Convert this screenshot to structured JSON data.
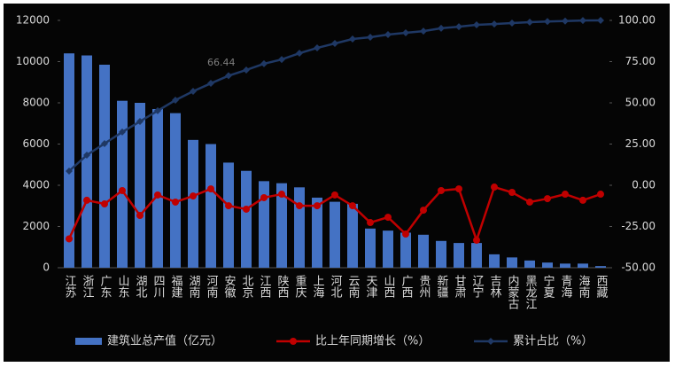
{
  "chart_data": {
    "type": "bar-line",
    "categories": [
      "江苏",
      "浙江",
      "广东",
      "山东",
      "湖北",
      "四川",
      "福建",
      "湖南",
      "河南",
      "安徽",
      "北京",
      "江西",
      "陕西",
      "重庆",
      "上海",
      "河北",
      "云南",
      "天津",
      "山西",
      "广西",
      "贵州",
      "新疆",
      "甘肃",
      "辽宁",
      "吉林",
      "内蒙古",
      "黑龙江",
      "宁夏",
      "青海",
      "海南",
      "西藏"
    ],
    "series": [
      {
        "name": "建筑业总产值（亿元）",
        "type": "bar",
        "color": "#4472c4",
        "values": [
          10400,
          10300,
          9850,
          8100,
          8000,
          7700,
          7500,
          6200,
          6000,
          5100,
          4700,
          4200,
          4100,
          3900,
          3400,
          3200,
          3100,
          1900,
          1800,
          1700,
          1600,
          1300,
          1200,
          1200,
          650,
          500,
          350,
          250,
          200,
          200,
          80
        ]
      },
      {
        "name": "比上年同期增长（%）",
        "type": "line",
        "axis": "y2",
        "color": "#c00000",
        "marker": "circle",
        "values": [
          -32.5,
          -9.1,
          -11.3,
          -3.2,
          -18.3,
          -5.9,
          -10.2,
          -6.5,
          -2.2,
          -12.4,
          -14.5,
          -7.5,
          -5.4,
          -12.4,
          -12.4,
          -5.9,
          -12.4,
          -22.6,
          -19.4,
          -29.6,
          -15.1,
          -3.2,
          -2.2,
          -33.3,
          -1.1,
          -4.3,
          -10.2,
          -8.1,
          -5.4,
          -9.1,
          -5.4
        ]
      },
      {
        "name": "累计占比（%）",
        "type": "line",
        "axis": "y2",
        "color": "#1f3864",
        "marker": "diamond",
        "values": [
          8.6,
          18.3,
          25.3,
          32.3,
          38.7,
          45.2,
          51.6,
          57.0,
          61.8,
          66.44,
          69.9,
          73.7,
          76.3,
          80.1,
          83.3,
          86.0,
          88.7,
          89.8,
          91.4,
          92.5,
          93.5,
          95.2,
          96.2,
          97.3,
          97.8,
          98.4,
          98.9,
          99.3,
          99.6,
          99.9,
          100
        ]
      }
    ],
    "ylim": [
      0,
      12000
    ],
    "yticks": [
      0,
      2000,
      4000,
      6000,
      8000,
      10000,
      12000
    ],
    "y2lim": [
      -50,
      100
    ],
    "y2ticks": [
      {
        "value": -50,
        "label": "-50.00"
      },
      {
        "value": -25,
        "label": "-25.00"
      },
      {
        "value": 0,
        "label": "0.00"
      },
      {
        "value": 25,
        "label": "25.00"
      },
      {
        "value": 50,
        "label": "50.00"
      },
      {
        "value": 75,
        "label": "75.00"
      },
      {
        "value": 100,
        "label": "100.00"
      }
    ],
    "grid": false,
    "legend": "bottom"
  }
}
